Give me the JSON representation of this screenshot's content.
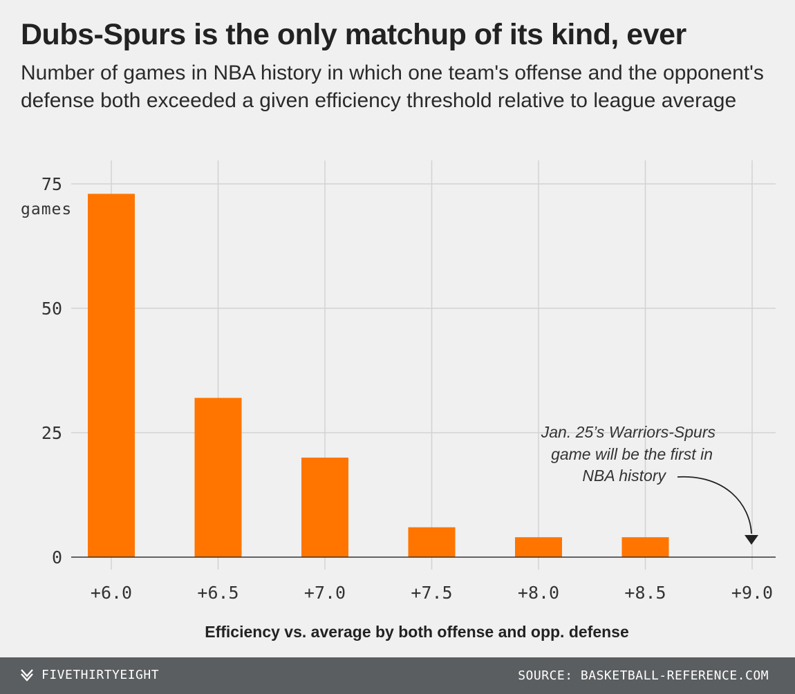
{
  "header": {
    "title": "Dubs-Spurs is the only matchup of its kind, ever",
    "subtitle": "Number of games in NBA history in which one team's offense and the opponent's defense both exceeded a given efficiency threshold relative to league average"
  },
  "chart_data": {
    "type": "bar",
    "categories": [
      "+6.0",
      "+6.5",
      "+7.0",
      "+7.5",
      "+8.0",
      "+8.5",
      "+9.0"
    ],
    "values": [
      73,
      32,
      20,
      6,
      4,
      4,
      0
    ],
    "xlabel": "Efficiency vs. average by both offense and opp. defense",
    "ylabel": "games",
    "ylim": [
      0,
      75
    ],
    "yticks": [
      0,
      25,
      50,
      75
    ],
    "grid": true,
    "bar_color": "#ff7500",
    "annotation": {
      "lines": [
        "Jan. 25’s Warriors-Spurs",
        "game will be the first in",
        "NBA history"
      ],
      "points_to": "+9.0"
    }
  },
  "footer": {
    "brand": "FIVETHIRTYEIGHT",
    "brand_icon": "fivethirtyeight-logo-icon",
    "source": "SOURCE: BASKETBALL-REFERENCE.COM"
  },
  "colors": {
    "background": "#f0f0f0",
    "bar": "#ff7500",
    "footer_bg": "#5b5e60",
    "grid": "#d2d2d2"
  }
}
